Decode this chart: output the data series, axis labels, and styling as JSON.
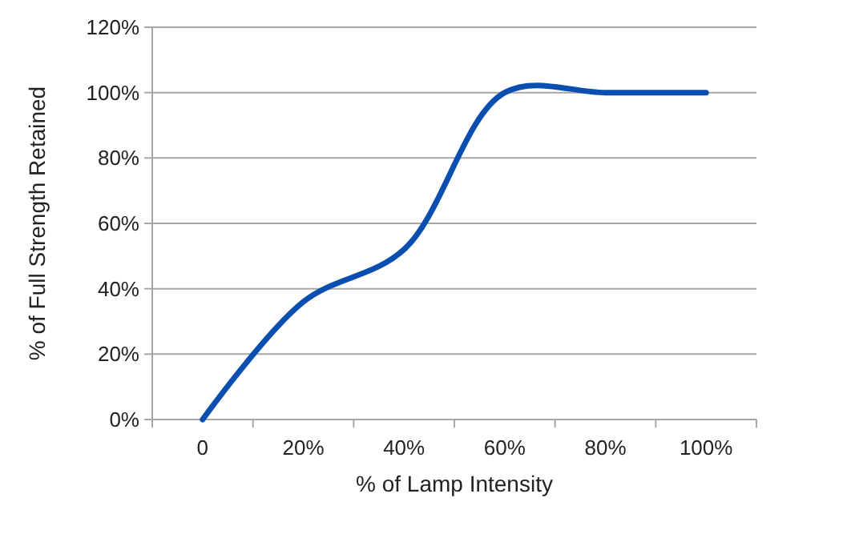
{
  "chart_data": {
    "type": "line",
    "xlabel": "% of Lamp Intensity",
    "ylabel": "% of Full Strength Retained",
    "categories": [
      "0",
      "20%",
      "40%",
      "60%",
      "80%",
      "100%"
    ],
    "series": [
      {
        "color": "#0a4fb0",
        "values": [
          0,
          36,
          52,
          100,
          100,
          100
        ]
      }
    ],
    "ylim": [
      0,
      120
    ],
    "yticks": [
      {
        "value": 0,
        "label": "0%"
      },
      {
        "value": 20,
        "label": "20%"
      },
      {
        "value": 40,
        "label": "40%"
      },
      {
        "value": 60,
        "label": "60%"
      },
      {
        "value": 80,
        "label": "80%"
      },
      {
        "value": 100,
        "label": "100%"
      },
      {
        "value": 120,
        "label": "120%"
      }
    ],
    "grid": "y",
    "marker": "none",
    "line_style": "solid"
  }
}
